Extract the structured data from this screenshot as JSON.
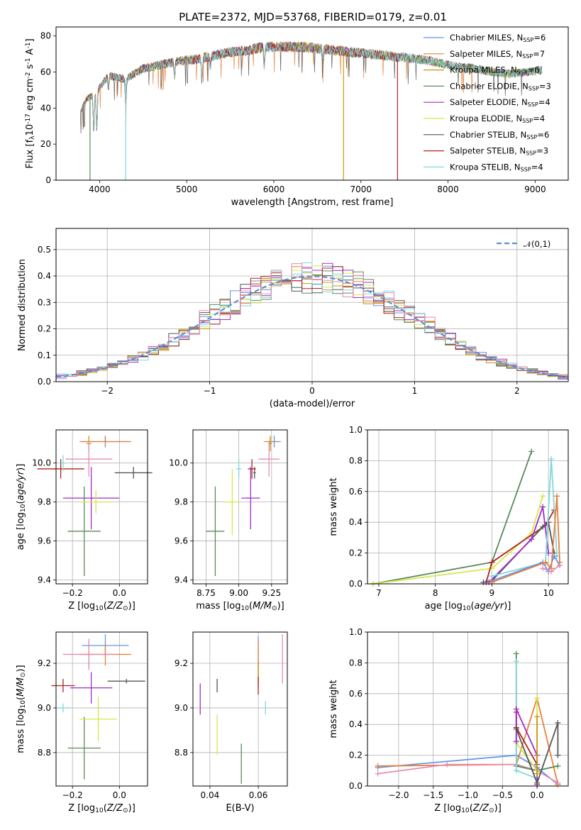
{
  "figure": {
    "title": "PLATE=2372, MJD=53768, FIBERID=0179, z=0.01"
  },
  "colors": {
    "Chabrier MILES": "#6495ed",
    "Salpeter MILES": "#e9813a",
    "Kroupa MILES": "#c8960c",
    "Chabrier ELODIE": "#5a8a5a",
    "Salpeter ELODIE": "#a32cc4",
    "Kroupa ELODIE": "#d4e84a",
    "Chabrier STELIB": "#555555",
    "Salpeter STELIB": "#b22222",
    "Kroupa STELIB": "#7fd8de",
    "pink": "#e88bb4"
  },
  "chart_data": [
    {
      "id": "spectrum",
      "type": "line",
      "xlabel": "wavelength [Angstrom, rest frame]",
      "ylabel": "Flux [f$_\\lambda$10$^{-17}$ erg cm$^{-2}$ s$^{-1}$ A$^{-1}$]",
      "xlim": [
        3500,
        9380
      ],
      "ylim": [
        0,
        85
      ],
      "xticks": [
        4000,
        5000,
        6000,
        7000,
        8000,
        9000
      ],
      "yticks": [
        0,
        20,
        40,
        60,
        80
      ],
      "legend_position": "top-right",
      "legend": [
        {
          "name": "Chabrier MILES",
          "nssp": "6"
        },
        {
          "name": "Salpeter MILES",
          "nssp": "7"
        },
        {
          "name": "Kroupa MILES",
          "nssp": "6"
        },
        {
          "name": "Chabrier ELODIE",
          "nssp": "3"
        },
        {
          "name": "Salpeter ELODIE",
          "nssp": "4"
        },
        {
          "name": "Kroupa ELODIE",
          "nssp": "4"
        },
        {
          "name": "Chabrier STELIB",
          "nssp": "6"
        },
        {
          "name": "Salpeter STELIB",
          "nssp": "3"
        },
        {
          "name": "Kroupa STELIB",
          "nssp": "4"
        }
      ],
      "continuum": [
        [
          3780,
          38
        ],
        [
          3850,
          45
        ],
        [
          3950,
          48
        ],
        [
          4100,
          58
        ],
        [
          4300,
          56
        ],
        [
          4500,
          62
        ],
        [
          4700,
          64
        ],
        [
          4900,
          66
        ],
        [
          5100,
          67
        ],
        [
          5300,
          69
        ],
        [
          5500,
          71
        ],
        [
          5700,
          72
        ],
        [
          5900,
          74
        ],
        [
          6100,
          74
        ],
        [
          6300,
          74
        ],
        [
          6500,
          73
        ],
        [
          6700,
          72
        ],
        [
          6900,
          71
        ],
        [
          7100,
          70
        ],
        [
          7300,
          69
        ],
        [
          7500,
          68
        ],
        [
          7700,
          67
        ],
        [
          7900,
          65
        ],
        [
          8100,
          63
        ],
        [
          8300,
          62
        ],
        [
          8500,
          60
        ],
        [
          8700,
          59
        ],
        [
          8900,
          60
        ],
        [
          9080,
          61
        ]
      ],
      "absorption": [
        [
          3933,
          0.45
        ],
        [
          3968,
          0.45
        ],
        [
          4101,
          0.12
        ],
        [
          4300,
          0.25
        ],
        [
          4861,
          0.12
        ],
        [
          5175,
          0.2
        ],
        [
          5270,
          0.08
        ],
        [
          5890,
          0.15
        ],
        [
          6563,
          0.1
        ]
      ],
      "xy_dropouts": [
        [
          3890,
          0
        ],
        [
          4300,
          0
        ],
        [
          6800,
          0
        ],
        [
          7420,
          0
        ]
      ]
    },
    {
      "id": "residuals",
      "type": "histogram",
      "xlabel": "(data-model)/error",
      "ylabel": "Normed distribution",
      "xlim": [
        -2.5,
        2.5
      ],
      "ylim": [
        0,
        0.58
      ],
      "xticks": [
        -2,
        -1,
        0,
        1,
        2
      ],
      "yticks": [
        0.0,
        0.1,
        0.2,
        0.3,
        0.4,
        0.5
      ],
      "legend": "$\\mathcal{N}(0,1)$",
      "legend_position": "top-right"
    },
    {
      "id": "age_vs_Z",
      "type": "errorbar",
      "xlabel": "Z [log$_{10}$($Z/Z_\\odot$)]",
      "ylabel": "age  [log$_{10}$($age/yr$)]",
      "xlim": [
        -0.27,
        0.12
      ],
      "ylim": [
        9.38,
        10.17
      ],
      "xticks": [
        -0.2,
        0.0
      ],
      "yticks": [
        9.4,
        9.6,
        9.8,
        10.0
      ],
      "points": [
        {
          "s": "Chabrier MILES",
          "x": -0.06,
          "y": 10.11,
          "xe": 0.1,
          "ye": 0.03
        },
        {
          "s": "Salpeter MILES",
          "x": -0.06,
          "y": 10.11,
          "xe": 0.11,
          "ye": 0.02
        },
        {
          "s": "Kroupa MILES",
          "x": -0.13,
          "y": 10.1,
          "xe": 0.01,
          "ye": 0.04
        },
        {
          "s": "Chabrier ELODIE",
          "x": -0.15,
          "y": 9.65,
          "xe": 0.07,
          "ye": 0.23
        },
        {
          "s": "Salpeter ELODIE",
          "x": -0.12,
          "y": 9.82,
          "xe": 0.12,
          "ye": 0.16
        },
        {
          "s": "Kroupa ELODIE",
          "x": -0.1,
          "y": 9.8,
          "xe": 0.07,
          "ye": 0.06
        },
        {
          "s": "Chabrier STELIB",
          "x": 0.06,
          "y": 9.95,
          "xe": 0.08,
          "ye": 0.03
        },
        {
          "s": "Salpeter STELIB",
          "x": -0.25,
          "y": 9.97,
          "xe": 0.1,
          "ye": 0.05
        },
        {
          "s": "Kroupa STELIB",
          "x": -0.24,
          "y": 10.0,
          "xe": 0.01,
          "ye": 0.04
        },
        {
          "s": "pink",
          "x": -0.13,
          "y": 10.02,
          "xe": 0.1,
          "ye": 0.09
        }
      ]
    },
    {
      "id": "age_vs_mass",
      "type": "errorbar",
      "xlabel": "mass [log$_{10}$($M/M_\\odot$)]",
      "xlim": [
        8.65,
        9.37
      ],
      "ylim": [
        9.38,
        10.17
      ],
      "xticks": [
        8.75,
        9.0,
        9.25
      ],
      "yticks": [
        9.4,
        9.6,
        9.8,
        10.0
      ],
      "points": [
        {
          "s": "Chabrier MILES",
          "x": 9.27,
          "y": 10.11,
          "xe": 0.05,
          "ye": 0.03
        },
        {
          "s": "Salpeter MILES",
          "x": 9.24,
          "y": 10.11,
          "xe": 0.05,
          "ye": 0.02
        },
        {
          "s": "Kroupa MILES",
          "x": 9.24,
          "y": 10.1,
          "xe": 0.01,
          "ye": 0.04
        },
        {
          "s": "Chabrier ELODIE",
          "x": 8.82,
          "y": 9.65,
          "xe": 0.07,
          "ye": 0.23
        },
        {
          "s": "Salpeter ELODIE",
          "x": 9.09,
          "y": 9.82,
          "xe": 0.07,
          "ye": 0.16
        },
        {
          "s": "Kroupa ELODIE",
          "x": 8.95,
          "y": 9.8,
          "xe": 0.07,
          "ye": 0.17
        },
        {
          "s": "Chabrier STELIB",
          "x": 9.12,
          "y": 9.95,
          "xe": 0.01,
          "ye": 0.03
        },
        {
          "s": "Salpeter STELIB",
          "x": 9.1,
          "y": 9.97,
          "xe": 0.03,
          "ye": 0.05
        },
        {
          "s": "Kroupa STELIB",
          "x": 9.0,
          "y": 9.97,
          "xe": 0.02,
          "ye": 0.05
        },
        {
          "s": "pink",
          "x": 9.23,
          "y": 10.02,
          "xe": 0.08,
          "ye": 0.09
        }
      ]
    },
    {
      "id": "weight_vs_age",
      "type": "line",
      "xlabel": "age  [log$_{10}$($age/yr$)]",
      "ylabel": "mass weight",
      "xlim": [
        6.8,
        10.35
      ],
      "ylim": [
        0,
        1
      ],
      "xticks": [
        7,
        8,
        9,
        10
      ],
      "yticks": [
        0.0,
        0.2,
        0.4,
        0.6,
        0.8,
        1.0
      ],
      "series": [
        {
          "s": "Chabrier ELODIE",
          "x": [
            6.9,
            9.0,
            9.7
          ],
          "y": [
            0.0,
            0.14,
            0.86
          ]
        },
        {
          "s": "Kroupa ELODIE",
          "x": [
            6.9,
            9.0,
            9.7,
            9.9
          ],
          "y": [
            0.0,
            0.1,
            0.33,
            0.57
          ]
        },
        {
          "s": "Salpeter STELIB",
          "x": [
            8.9,
            9.0,
            9.95,
            10.1
          ],
          "y": [
            0.01,
            0.14,
            0.38,
            0.48
          ]
        },
        {
          "s": "Chabrier STELIB",
          "x": [
            8.85,
            9.0,
            9.9,
            10.0,
            10.1
          ],
          "y": [
            0.01,
            0.02,
            0.37,
            0.4,
            0.2
          ]
        },
        {
          "s": "Salpeter ELODIE",
          "x": [
            8.95,
            9.7,
            9.9,
            10.0
          ],
          "y": [
            0.01,
            0.29,
            0.5,
            0.2
          ]
        },
        {
          "s": "Kroupa STELIB",
          "x": [
            9.0,
            9.95,
            10.05,
            10.15
          ],
          "y": [
            0.05,
            0.14,
            0.81,
            0.18
          ]
        },
        {
          "s": "Chabrier MILES",
          "x": [
            9.0,
            9.9,
            10.0,
            10.1,
            10.2
          ],
          "y": [
            0.02,
            0.14,
            0.08,
            0.18,
            0.12
          ]
        },
        {
          "s": "Salpeter MILES",
          "x": [
            9.0,
            9.95,
            10.05,
            10.15,
            10.2
          ],
          "y": [
            0.01,
            0.14,
            0.1,
            0.57,
            0.14
          ]
        },
        {
          "s": "pink",
          "x": [
            9.9,
            10.05,
            10.2
          ],
          "y": [
            0.1,
            0.08,
            0.12
          ]
        }
      ]
    },
    {
      "id": "mass_vs_Z",
      "type": "errorbar",
      "xlabel": "Z [log$_{10}$($Z/Z_\\odot$)]",
      "ylabel": "mass [log$_{10}$($M/M_\\odot$)]",
      "xlim": [
        -0.27,
        0.12
      ],
      "ylim": [
        8.65,
        9.34
      ],
      "xticks": [
        -0.2,
        0.0
      ],
      "yticks": [
        8.8,
        9.0,
        9.2
      ],
      "points": [
        {
          "s": "Chabrier MILES",
          "x": -0.06,
          "y": 9.28,
          "xe": 0.1,
          "ye": 0.05
        },
        {
          "s": "Salpeter MILES",
          "x": -0.06,
          "y": 9.24,
          "xe": 0.11,
          "ye": 0.05
        },
        {
          "s": "Kroupa MILES",
          "x": -0.13,
          "y": 9.24,
          "xe": 0.01,
          "ye": 0.06
        },
        {
          "s": "Chabrier ELODIE",
          "x": -0.15,
          "y": 8.82,
          "xe": 0.07,
          "ye": 0.14
        },
        {
          "s": "Salpeter ELODIE",
          "x": -0.12,
          "y": 9.09,
          "xe": 0.09,
          "ye": 0.07
        },
        {
          "s": "Kroupa ELODIE",
          "x": -0.09,
          "y": 8.95,
          "xe": 0.08,
          "ye": 0.1
        },
        {
          "s": "Chabrier STELIB",
          "x": 0.03,
          "y": 9.12,
          "xe": 0.08,
          "ye": 0.01
        },
        {
          "s": "Salpeter STELIB",
          "x": -0.24,
          "y": 9.1,
          "xe": 0.05,
          "ye": 0.03
        },
        {
          "s": "Kroupa STELIB",
          "x": -0.24,
          "y": 9.0,
          "xe": 0.03,
          "ye": 0.02
        },
        {
          "s": "pink",
          "x": -0.13,
          "y": 9.24,
          "xe": 0.11,
          "ye": 0.07
        }
      ]
    },
    {
      "id": "mass_vs_ebv",
      "type": "errorbar",
      "xlabel": "E(B-V)",
      "xlim": [
        0.033,
        0.072
      ],
      "ylim": [
        8.65,
        9.34
      ],
      "xticks": [
        0.04,
        0.06
      ],
      "yticks": [
        8.8,
        9.0,
        9.2
      ],
      "points": [
        {
          "s": "Chabrier MILES",
          "x": 0.06,
          "y": 9.22,
          "xe": 0.0,
          "ye": 0.1
        },
        {
          "s": "Salpeter MILES",
          "x": 0.06,
          "y": 9.2,
          "xe": 0.0,
          "ye": 0.1
        },
        {
          "s": "Kroupa MILES",
          "x": 0.06,
          "y": 9.15,
          "xe": 0.0,
          "ye": 0.06
        },
        {
          "s": "Chabrier ELODIE",
          "x": 0.053,
          "y": 8.75,
          "xe": 0.0,
          "ye": 0.09
        },
        {
          "s": "Salpeter ELODIE",
          "x": 0.036,
          "y": 9.04,
          "xe": 0.0,
          "ye": 0.07
        },
        {
          "s": "Kroupa ELODIE",
          "x": 0.043,
          "y": 8.88,
          "xe": 0.0,
          "ye": 0.09
        },
        {
          "s": "Chabrier STELIB",
          "x": 0.043,
          "y": 9.1,
          "xe": 0.0,
          "ye": 0.03
        },
        {
          "s": "Salpeter STELIB",
          "x": 0.06,
          "y": 9.1,
          "xe": 0.0,
          "ye": 0.04
        },
        {
          "s": "Kroupa STELIB",
          "x": 0.063,
          "y": 9.0,
          "xe": 0.0,
          "ye": 0.03
        },
        {
          "s": "pink",
          "x": 0.07,
          "y": 9.22,
          "xe": 0.0,
          "ye": 0.11
        }
      ]
    },
    {
      "id": "weight_vs_Z",
      "type": "line",
      "xlabel": "Z [log$_{10}$($Z/Z_\\odot$)]",
      "ylabel": "mass weight",
      "xlim": [
        -2.45,
        0.45
      ],
      "ylim": [
        0,
        1
      ],
      "xticks": [
        -2.0,
        -1.5,
        -1.0,
        -0.5,
        0.0
      ],
      "yticks": [
        0.0,
        0.2,
        0.4,
        0.6,
        0.8,
        1.0
      ],
      "series": [
        {
          "s": "Chabrier MILES",
          "x": [
            -2.3,
            -0.3,
            0.0,
            0.3
          ],
          "y": [
            0.12,
            0.2,
            0.12,
            0.01
          ]
        },
        {
          "s": "Salpeter MILES",
          "x": [
            -2.3,
            -0.3,
            0.0,
            0.3
          ],
          "y": [
            0.13,
            0.14,
            0.57,
            0.01
          ]
        },
        {
          "s": "pink",
          "x": [
            -2.3,
            -1.3,
            -0.3,
            0.0,
            0.3
          ],
          "y": [
            0.08,
            0.14,
            0.14,
            0.1,
            0.02
          ]
        },
        {
          "s": "Chabrier ELODIE",
          "x": [
            -0.3,
            -0.3,
            0.0,
            0.3
          ],
          "y": [
            0.86,
            0.13,
            0.1,
            0.13
          ]
        },
        {
          "s": "Kroupa ELODIE",
          "x": [
            -0.3,
            0.0,
            0.0
          ],
          "y": [
            0.28,
            0.1,
            0.57
          ]
        },
        {
          "s": "Kroupa STELIB",
          "x": [
            -0.3,
            -0.3,
            0.0
          ],
          "y": [
            0.81,
            0.1,
            0.05
          ]
        },
        {
          "s": "Salpeter STELIB",
          "x": [
            -0.3,
            -0.3,
            0.0
          ],
          "y": [
            0.48,
            0.38,
            0.14
          ]
        },
        {
          "s": "Salpeter ELODIE",
          "x": [
            -0.3,
            -0.3,
            0.0,
            0.0
          ],
          "y": [
            0.29,
            0.5,
            0.2,
            0.01
          ]
        },
        {
          "s": "Chabrier STELIB",
          "x": [
            -0.3,
            0.0,
            0.3,
            0.3
          ],
          "y": [
            0.37,
            0.02,
            0.41,
            0.2
          ]
        },
        {
          "s": "Kroupa MILES",
          "x": [
            0.0,
            0.0
          ],
          "y": [
            0.45,
            0.08
          ]
        }
      ]
    }
  ]
}
